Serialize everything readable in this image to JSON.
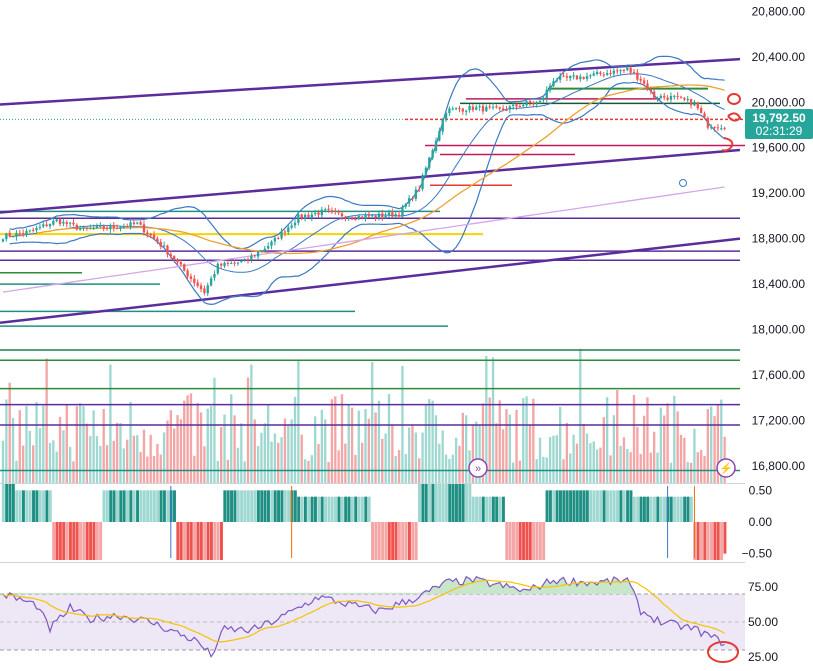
{
  "colors": {
    "bull": "#26a69a",
    "bear": "#ef5350",
    "bull_vol": "#9fd8d1",
    "bear_vol": "#f4a6a6",
    "dark_teal": "#1f8f84",
    "purple": "#5b2c9c",
    "bb_band": "#3b79c4",
    "ma_orange": "#f0a030",
    "ma_lilac": "#d7a6e6",
    "yellow": "#f5d400",
    "green_level": "#2e8b3a",
    "magenta_level": "#c2185b",
    "red_level": "#e53935",
    "rsi_line": "#7e57c2",
    "rsi_ma": "#f5c400",
    "rsi_band": "#ede7f6",
    "last_price_bg": "#26a69a"
  },
  "last_price": {
    "value": "19,792.50",
    "countdown": "02:31:29"
  },
  "chart_data": [
    {
      "type": "candlestick",
      "name": "price",
      "y_ticks": [
        "20,800.00",
        "20,400.00",
        "20,000.00",
        "19,600.00",
        "19,200.00",
        "18,800.00",
        "18,400.00",
        "18,000.00",
        "17,600.00",
        "17,200.00",
        "16,800.00"
      ],
      "ylim": [
        16650,
        20900
      ],
      "key_points": [
        [
          0,
          18820
        ],
        [
          8,
          18860
        ],
        [
          16,
          18960
        ],
        [
          24,
          18880
        ],
        [
          32,
          18900
        ],
        [
          40,
          18930
        ],
        [
          48,
          18720
        ],
        [
          56,
          18450
        ],
        [
          60,
          18330
        ],
        [
          64,
          18560
        ],
        [
          72,
          18600
        ],
        [
          80,
          18760
        ],
        [
          88,
          18990
        ],
        [
          96,
          19040
        ],
        [
          104,
          18990
        ],
        [
          112,
          19000
        ],
        [
          118,
          19020
        ],
        [
          124,
          19250
        ],
        [
          132,
          19930
        ],
        [
          140,
          19950
        ],
        [
          148,
          19930
        ],
        [
          156,
          19990
        ],
        [
          160,
          20000
        ],
        [
          164,
          20200
        ],
        [
          172,
          20220
        ],
        [
          180,
          20260
        ],
        [
          186,
          20290
        ],
        [
          190,
          20200
        ],
        [
          194,
          20050
        ],
        [
          200,
          20040
        ],
        [
          206,
          19990
        ],
        [
          210,
          19800
        ],
        [
          214,
          19792
        ]
      ],
      "bollinger_bands": {
        "show": true
      },
      "moving_averages": [
        "orange",
        "lilac"
      ],
      "trend_channel": {
        "color": "purple"
      },
      "horizontal_levels": [
        "green",
        "magenta",
        "red",
        "purple",
        "teal",
        "yellow"
      ]
    },
    {
      "type": "bar",
      "name": "volume",
      "note": "pink/teal volume bars overlayed on lower price area"
    },
    {
      "type": "bar",
      "name": "histogram-oscillator",
      "y_ticks": [
        "0.50",
        "0.00",
        "−0.50"
      ],
      "ylim": [
        -0.6,
        0.6
      ]
    },
    {
      "type": "line",
      "name": "rsi",
      "y_ticks": [
        "75.00",
        "50.00",
        "25.00"
      ],
      "ylim": [
        20,
        90
      ],
      "band": [
        30,
        70
      ]
    }
  ]
}
